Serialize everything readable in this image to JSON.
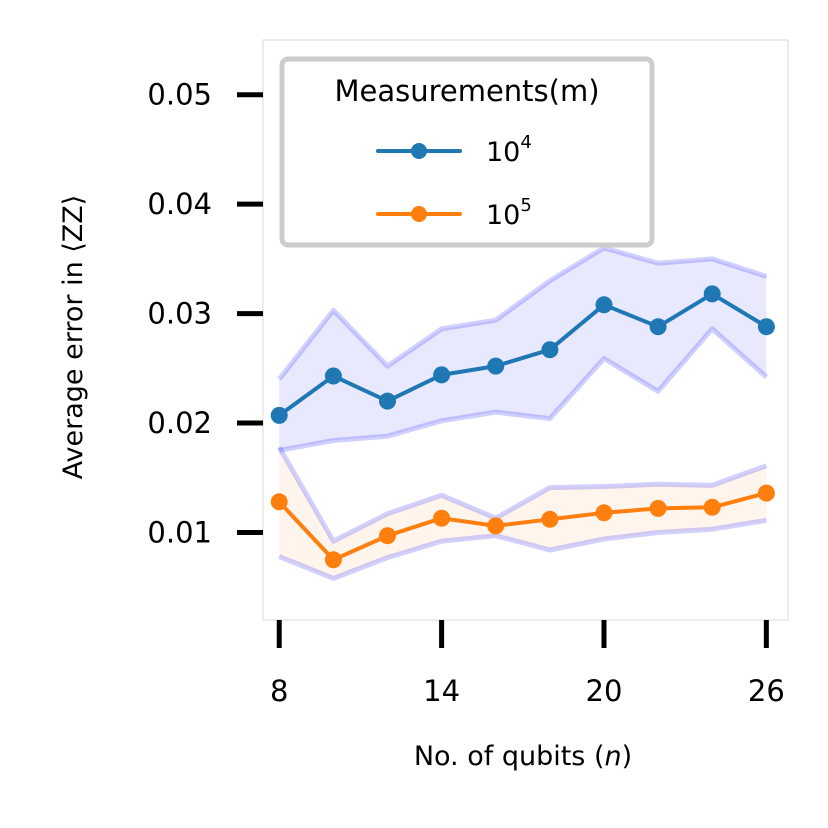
{
  "chart_data": {
    "type": "line",
    "title": "",
    "xlabel": "No. of qubits (n)",
    "xlabel_prefix": "No. of qubits (",
    "xlabel_var": "n",
    "xlabel_suffix": ")",
    "ylabel": "Average error in ⟨ZZ⟩",
    "xlim": [
      7.4,
      26.8
    ],
    "ylim": [
      0.002,
      0.055
    ],
    "xticks": [
      8,
      14,
      20,
      26
    ],
    "xtick_labels": [
      "8",
      "14",
      "20",
      "26"
    ],
    "yticks": [
      0.01,
      0.02,
      0.03,
      0.04,
      0.05
    ],
    "ytick_labels": [
      "0.01",
      "0.02",
      "0.03",
      "0.04",
      "0.05"
    ],
    "x": [
      8,
      10,
      12,
      14,
      16,
      18,
      20,
      22,
      24,
      26
    ],
    "legend": {
      "title": "Measurements(m)",
      "placement": "top-left"
    },
    "series": [
      {
        "name": "10^4",
        "label_base": "10",
        "label_exp": "4",
        "color": "#1f77b4",
        "band_color": "#0000ff",
        "values": [
          0.0207,
          0.0243,
          0.022,
          0.0244,
          0.0252,
          0.0267,
          0.0308,
          0.0288,
          0.0318,
          0.0288
        ],
        "upper": [
          0.024,
          0.0303,
          0.0252,
          0.0286,
          0.0294,
          0.033,
          0.036,
          0.0346,
          0.035,
          0.0334
        ],
        "lower": [
          0.0175,
          0.0184,
          0.0188,
          0.0202,
          0.021,
          0.0204,
          0.0259,
          0.0229,
          0.0286,
          0.0242
        ]
      },
      {
        "name": "10^5",
        "label_base": "10",
        "label_exp": "5",
        "color": "#ff7f0e",
        "band_color": "#ff7f0e",
        "band_edge_color": "#0000ff",
        "values": [
          0.0128,
          0.0075,
          0.0097,
          0.0113,
          0.0106,
          0.0112,
          0.0118,
          0.0122,
          0.0123,
          0.0136
        ],
        "upper": [
          0.0178,
          0.0092,
          0.0117,
          0.0134,
          0.0113,
          0.0141,
          0.0142,
          0.0144,
          0.0143,
          0.0161
        ],
        "lower": [
          0.0078,
          0.0058,
          0.0077,
          0.0092,
          0.0097,
          0.0084,
          0.0094,
          0.01,
          0.0103,
          0.0111
        ]
      }
    ]
  }
}
